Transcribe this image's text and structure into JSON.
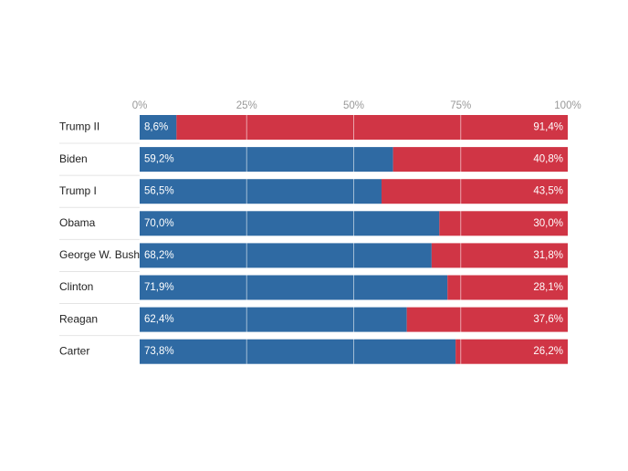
{
  "chart_data": {
    "type": "bar",
    "orientation": "horizontal",
    "stacked": true,
    "percent": true,
    "title": "",
    "xlabel": "",
    "ylabel": "",
    "xlim": [
      0,
      100
    ],
    "x_ticks": [
      "0%",
      "25%",
      "50%",
      "75%",
      "100%"
    ],
    "x_tick_values": [
      0,
      25,
      50,
      75,
      100
    ],
    "grid": true,
    "legend": "none",
    "categories": [
      "Trump II",
      "Biden",
      "Trump I",
      "Obama",
      "George W. Bush",
      "Clinton",
      "Reagan",
      "Carter"
    ],
    "series": [
      {
        "color": "#2f6aa3",
        "values": [
          8.6,
          59.2,
          56.5,
          70.0,
          68.2,
          71.9,
          62.4,
          73.8
        ],
        "labels": [
          "8,6%",
          "59,2%",
          "56,5%",
          "70,0%",
          "68,2%",
          "71,9%",
          "62,4%",
          "73,8%"
        ]
      },
      {
        "color": "#d03545",
        "values": [
          91.4,
          40.8,
          43.5,
          30.0,
          31.8,
          28.1,
          37.6,
          26.2
        ],
        "labels": [
          "91,4%",
          "40,8%",
          "43,5%",
          "30,0%",
          "31,8%",
          "28,1%",
          "37,6%",
          "26,2%"
        ]
      }
    ]
  }
}
